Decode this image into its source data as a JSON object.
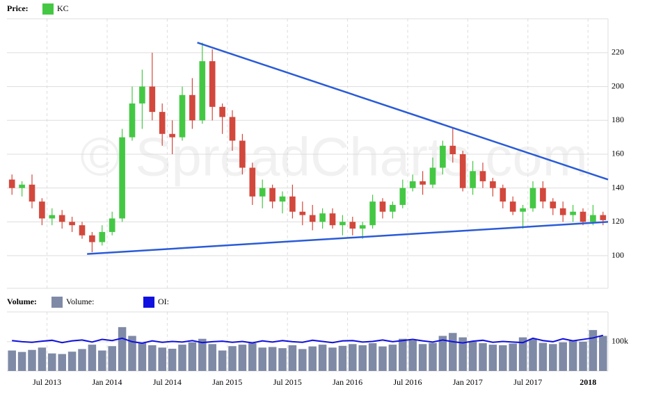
{
  "chart_data": {
    "type": "candlestick",
    "legend_label": "Price:",
    "series_name": "KC",
    "series_color": "#44c844",
    "watermark": "© SpreadCharts.com",
    "up_color": "#44c844",
    "down_color": "#d2483c",
    "x": [
      "2013-03",
      "2013-04",
      "2013-05",
      "2013-06",
      "2013-07",
      "2013-08",
      "2013-09",
      "2013-10",
      "2013-11",
      "2013-12",
      "2014-01",
      "2014-02",
      "2014-03",
      "2014-04",
      "2014-05",
      "2014-06",
      "2014-07",
      "2014-08",
      "2014-09",
      "2014-10",
      "2014-11",
      "2014-12",
      "2015-01",
      "2015-02",
      "2015-03",
      "2015-04",
      "2015-05",
      "2015-06",
      "2015-07",
      "2015-08",
      "2015-09",
      "2015-10",
      "2015-11",
      "2015-12",
      "2016-01",
      "2016-02",
      "2016-03",
      "2016-04",
      "2016-05",
      "2016-06",
      "2016-07",
      "2016-08",
      "2016-09",
      "2016-10",
      "2016-11",
      "2016-12",
      "2017-01",
      "2017-02",
      "2017-03",
      "2017-04",
      "2017-05",
      "2017-06",
      "2017-07",
      "2017-08",
      "2017-09",
      "2017-10",
      "2017-11",
      "2017-12",
      "2018-01",
      "2018-02"
    ],
    "open": [
      145,
      140,
      142,
      132,
      122,
      124,
      120,
      118,
      112,
      108,
      114,
      122,
      170,
      190,
      200,
      185,
      172,
      170,
      195,
      180,
      215,
      188,
      182,
      168,
      152,
      135,
      140,
      132,
      135,
      126,
      124,
      120,
      125,
      118,
      120,
      116,
      118,
      132,
      126,
      130,
      140,
      144,
      142,
      152,
      165,
      160,
      140,
      150,
      144,
      140,
      132,
      126,
      128,
      140,
      132,
      128,
      124,
      126,
      120,
      124
    ],
    "high": [
      148,
      144,
      148,
      134,
      128,
      127,
      123,
      120,
      114,
      118,
      126,
      175,
      200,
      210,
      220,
      190,
      180,
      200,
      205,
      226,
      222,
      190,
      186,
      172,
      155,
      145,
      142,
      138,
      142,
      132,
      130,
      128,
      128,
      124,
      123,
      120,
      136,
      134,
      132,
      145,
      148,
      150,
      158,
      168,
      176,
      162,
      156,
      155,
      146,
      142,
      135,
      130,
      144,
      144,
      134,
      132,
      130,
      128,
      130,
      126
    ],
    "low": [
      136,
      135,
      128,
      118,
      118,
      116,
      114,
      110,
      102,
      106,
      112,
      120,
      168,
      175,
      180,
      165,
      160,
      168,
      175,
      178,
      180,
      172,
      162,
      148,
      130,
      128,
      128,
      125,
      122,
      118,
      115,
      116,
      116,
      112,
      112,
      110,
      116,
      122,
      122,
      128,
      138,
      136,
      140,
      148,
      155,
      138,
      136,
      140,
      135,
      128,
      124,
      116,
      126,
      128,
      124,
      120,
      120,
      118,
      118,
      118
    ],
    "close": [
      140,
      142,
      132,
      122,
      124,
      120,
      118,
      112,
      108,
      114,
      122,
      170,
      190,
      200,
      185,
      172,
      170,
      195,
      180,
      215,
      188,
      182,
      168,
      152,
      135,
      140,
      132,
      135,
      126,
      124,
      120,
      125,
      118,
      120,
      116,
      118,
      132,
      126,
      130,
      140,
      144,
      142,
      152,
      165,
      160,
      140,
      150,
      144,
      140,
      132,
      126,
      128,
      140,
      132,
      128,
      124,
      126,
      120,
      124,
      121
    ],
    "xlim": [
      "2013-03",
      "2018-03"
    ],
    "xticks": [
      {
        "value": "2013-07",
        "label": "Jul 2013"
      },
      {
        "value": "2014-01",
        "label": "Jan 2014"
      },
      {
        "value": "2014-07",
        "label": "Jul 2014"
      },
      {
        "value": "2015-01",
        "label": "Jan 2015"
      },
      {
        "value": "2015-07",
        "label": "Jul 2015"
      },
      {
        "value": "2016-01",
        "label": "Jan 2016"
      },
      {
        "value": "2016-07",
        "label": "Jul 2016"
      },
      {
        "value": "2017-01",
        "label": "Jan 2017"
      },
      {
        "value": "2017-07",
        "label": "Jul 2017"
      },
      {
        "value": "2018-01",
        "label": "2018"
      }
    ],
    "ylim": [
      80.7,
      240.1
    ],
    "yticks": [
      100,
      120,
      140,
      160,
      180,
      200,
      220
    ],
    "grid": true,
    "trendlines": [
      {
        "x": [
          "2014-10",
          "2018-03"
        ],
        "y": [
          226,
          145
        ],
        "color": "#2a5bd7"
      },
      {
        "x": [
          "2013-11",
          "2018-03"
        ],
        "y": [
          101,
          120
        ],
        "color": "#2a5bd7"
      }
    ],
    "volume_panel": {
      "legend_label": "Volume:",
      "series": [
        {
          "name": "Volume:",
          "color": "#7f8aa6",
          "values": [
            70000,
            65000,
            72000,
            80000,
            60000,
            58000,
            66000,
            75000,
            90000,
            70000,
            85000,
            150000,
            120000,
            95000,
            88000,
            80000,
            76000,
            90000,
            98000,
            110000,
            92000,
            70000,
            85000,
            90000,
            95000,
            80000,
            82000,
            78000,
            88000,
            75000,
            84000,
            90000,
            80000,
            86000,
            92000,
            88000,
            95000,
            84000,
            90000,
            110000,
            105000,
            92000,
            96000,
            120000,
            130000,
            115000,
            100000,
            95000,
            90000,
            88000,
            94000,
            115000,
            110000,
            96000,
            92000,
            98000,
            104000,
            100000,
            140000,
            120000
          ]
        },
        {
          "name": "OI:",
          "color": "#1010e0",
          "values": [
            104000,
            100000,
            98000,
            102000,
            105000,
            97000,
            103000,
            106000,
            99000,
            108000,
            104000,
            112000,
            100000,
            95000,
            103000,
            98000,
            101000,
            99000,
            104000,
            97000,
            100000,
            102000,
            98000,
            101000,
            96000,
            103000,
            99000,
            104000,
            100000,
            98000,
            105000,
            101000,
            97000,
            103000,
            104000,
            99000,
            101000,
            106000,
            100000,
            104000,
            108000,
            103000,
            99000,
            106000,
            100000,
            96000,
            102000,
            105000,
            98000,
            101000,
            99000,
            97000,
            112000,
            104000,
            100000,
            110000,
            103000,
            108000,
            113000,
            122000
          ]
        }
      ],
      "ylim": [
        0,
        202000
      ],
      "yticks": [
        {
          "value": 100000,
          "label": "100k"
        }
      ]
    }
  }
}
